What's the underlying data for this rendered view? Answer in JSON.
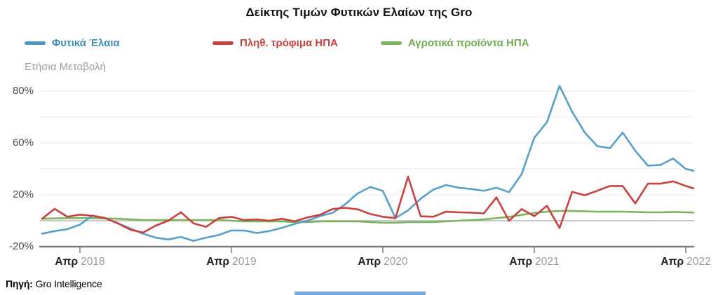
{
  "title": "Δείκτης Τιμών Φυτικών Ελαίων της Gro",
  "subtitle": "Ετήσια Μεταβολή",
  "source": {
    "label": "Πηγή:",
    "name": "Gro Intelligence"
  },
  "footer_bar_color": "#7da7d8",
  "legend": [
    {
      "label": "Φυτικά Έλαια",
      "color": "#4a97c2",
      "text_color": "#3e8fb8"
    },
    {
      "label": "Πληθ. τρόφιμα ΗΠΑ",
      "color": "#c9413f",
      "text_color": "#c5403f"
    },
    {
      "label": "Αγροτικά προϊόντα ΗΠΑ",
      "color": "#7ab45c",
      "text_color": "#71ab52"
    }
  ],
  "chart_data": {
    "type": "line",
    "title": "Δείκτης Τιμών Φυτικών Ελαίων της Gro",
    "ylabel": "Ετήσια Μεταβολή",
    "unit": "%",
    "grid": true,
    "legend_position": "top",
    "y_ticks_labeled": [
      {
        "value": 80,
        "label": "80%"
      },
      {
        "value": 60,
        "label": "60%"
      },
      {
        "value": 20,
        "label": "20%"
      },
      {
        "value": -20,
        "label": "-20%"
      }
    ],
    "y_gridline_values": [
      80,
      70,
      60,
      40,
      20,
      0,
      -20
    ],
    "zero_line": true,
    "x_ticks": [
      {
        "month": "Απρ",
        "year": "2018"
      },
      {
        "month": "Απρ",
        "year": "2019"
      },
      {
        "month": "Απρ",
        "year": "2020"
      },
      {
        "month": "Απρ",
        "year": "2021"
      },
      {
        "month": "Απρ",
        "year": "2022"
      }
    ],
    "x_tick_month_indices": [
      3,
      15,
      27,
      39,
      51
    ],
    "points_per_year": 12,
    "x_range_note": "monthly points, Jan 2018 - May 2022",
    "last_point_partial": true,
    "colors": {
      "grid": "#e8e8e8",
      "zero_line": "#b5b5b5",
      "axis": "#7a7a7a"
    },
    "series": [
      {
        "name": "Φυτικά Έλαια",
        "color": "#55a0c9",
        "values": [
          -10,
          -8,
          -6.5,
          -3,
          4,
          2,
          -2,
          -6,
          -10,
          -13,
          -14.5,
          -12.5,
          -15.5,
          -13,
          -11,
          -7.5,
          -7.5,
          -9.5,
          -8,
          -5.5,
          -2.5,
          0,
          3.5,
          6,
          12.5,
          21,
          26,
          23,
          2,
          8,
          17,
          24,
          27.5,
          25.5,
          24.5,
          23,
          25.5,
          22,
          36,
          62,
          68,
          82,
          72,
          64,
          57.5,
          56,
          64,
          54,
          42.5,
          43,
          48,
          40,
          38.5
        ]
      },
      {
        "name": "Πληθ. τρόφιμα ΗΠΑ",
        "color": "#c9413f",
        "values": [
          1.5,
          9.2,
          3,
          4.7,
          3.8,
          2,
          -2,
          -7,
          -9.2,
          -3.8,
          0,
          6.5,
          -2,
          -4.7,
          2,
          3,
          0.5,
          1,
          0,
          1.5,
          -0.5,
          2.5,
          4.5,
          9,
          10,
          8.8,
          5.2,
          3,
          2,
          34,
          3.4,
          3.1,
          7,
          6.5,
          6.2,
          5.6,
          18,
          0,
          9,
          3.5,
          11.5,
          -5.6,
          22.3,
          19.6,
          23.2,
          26.8,
          26.8,
          13.3,
          28.6,
          28.6,
          30.4,
          26.8,
          25
        ]
      },
      {
        "name": "Αγροτικά προϊόντα ΗΠΑ",
        "color": "#7ab45c",
        "values": [
          1.5,
          1.8,
          2,
          2,
          2,
          1.8,
          1.5,
          1,
          0.5,
          0.5,
          0.5,
          0.5,
          0.5,
          0.5,
          0.5,
          0,
          -0.5,
          -0.5,
          -0.5,
          -0.5,
          -1,
          -1,
          -0.5,
          -0.5,
          -0.5,
          -0.5,
          -1,
          -1.5,
          -1.5,
          -1,
          -1,
          -1,
          -0.5,
          0,
          0.5,
          1,
          2,
          3,
          4.5,
          6,
          7,
          7.5,
          7.5,
          7.3,
          7,
          7,
          7,
          6.8,
          6.5,
          6.5,
          6.8,
          6.5,
          6.3
        ]
      }
    ]
  }
}
